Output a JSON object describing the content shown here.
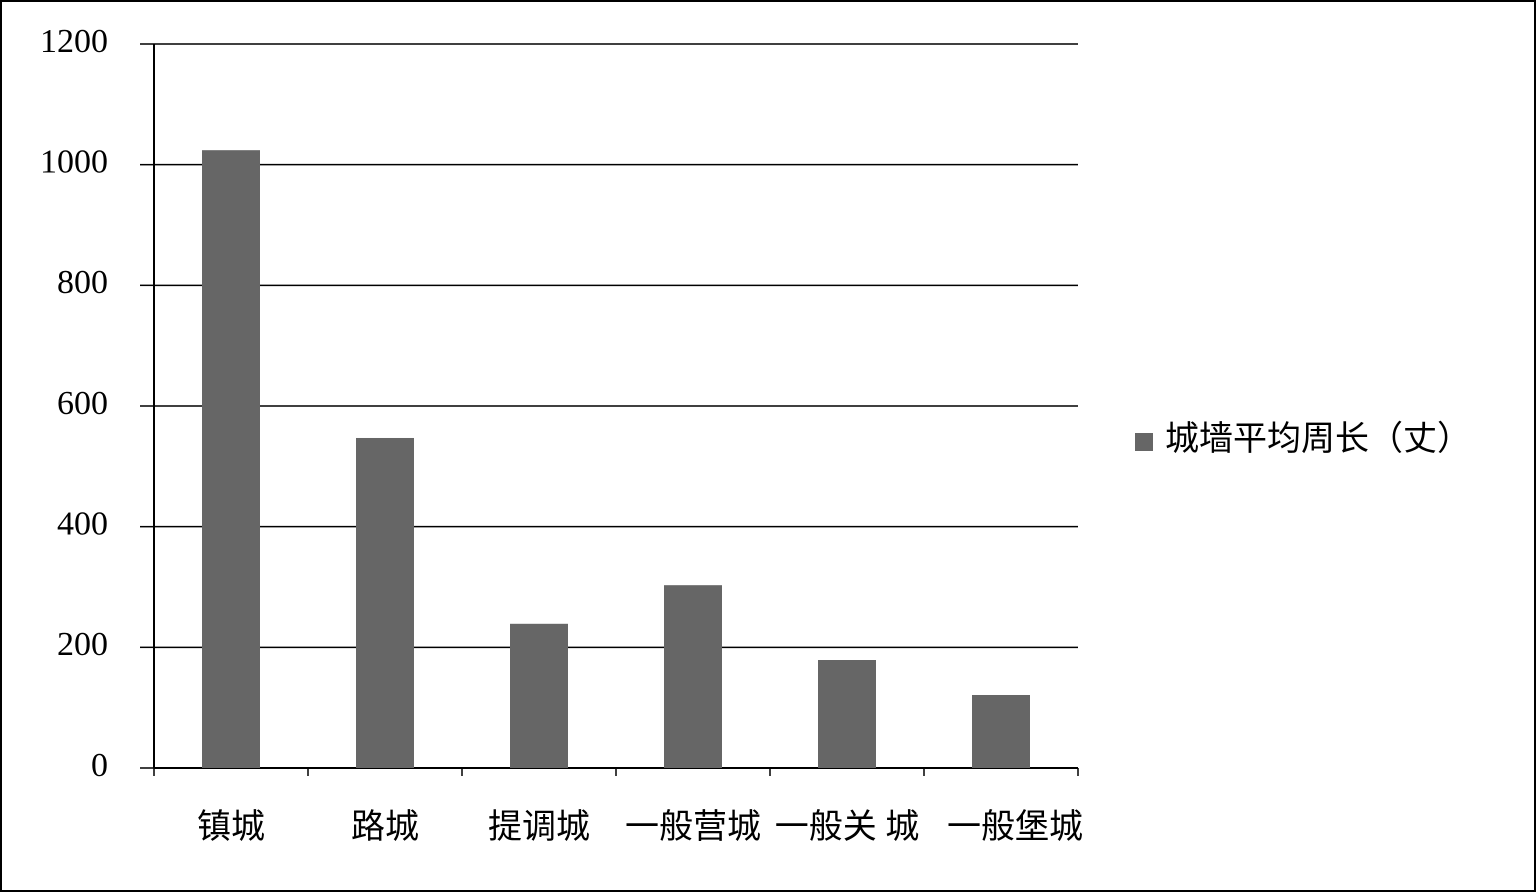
{
  "chart_data": {
    "type": "bar",
    "categories": [
      "镇城",
      "路城",
      "提调城",
      "一般营城",
      "一般关 城",
      "一般堡城"
    ],
    "series": [
      {
        "name": "城墙平均周长（丈）",
        "color": "#666666",
        "values": [
          1024,
          547,
          239,
          303,
          179,
          121
        ]
      }
    ],
    "ylim": [
      0,
      1200
    ],
    "yticks": [
      0,
      200,
      400,
      600,
      800,
      1000,
      1200
    ],
    "grid": true,
    "legend": "right"
  }
}
